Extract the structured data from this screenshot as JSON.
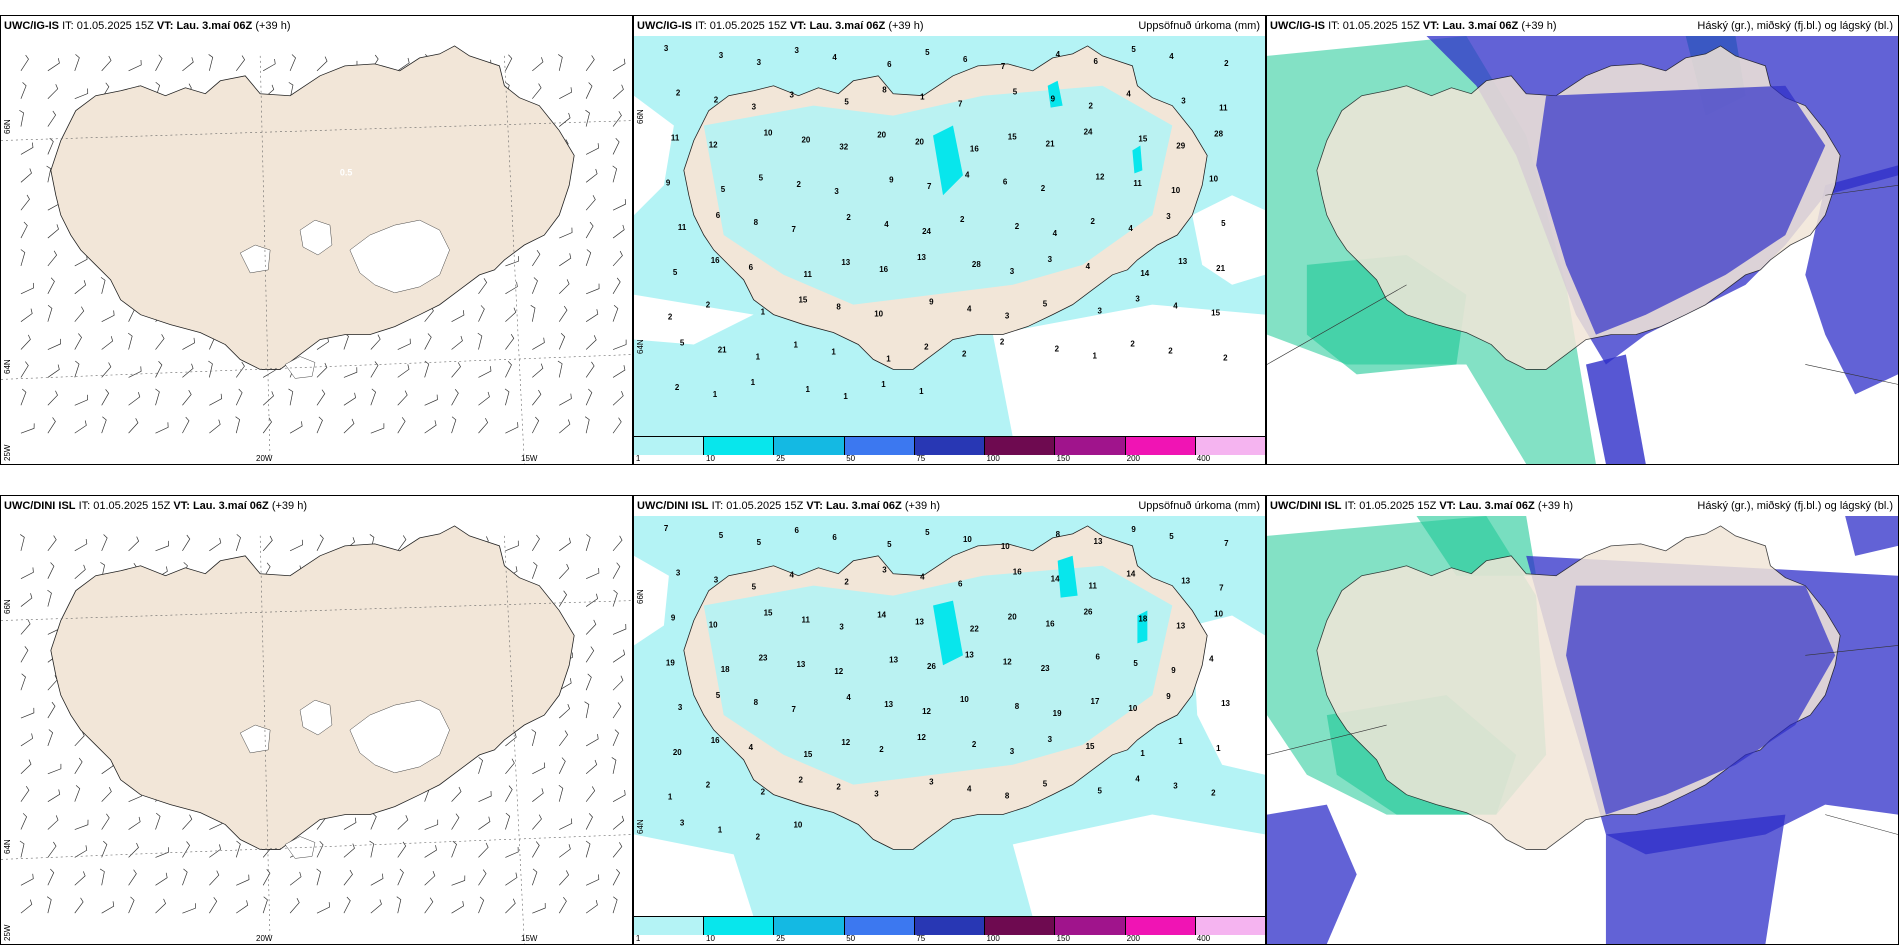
{
  "legend_colors": [
    "#b4f3f5",
    "#08e6ec",
    "#14b9e3",
    "#3c78f0",
    "#2837b4",
    "#6e0a50",
    "#a0148c",
    "#f014b4",
    "#f5b4f0"
  ],
  "legend_ticks": [
    "1",
    "10",
    "25",
    "50",
    "75",
    "100",
    "150",
    "200",
    "400"
  ],
  "colors": {
    "land": "#f2e6d8",
    "sea": "#ffffff",
    "precip_light": "#b4f3f5",
    "precip_mid": "#08e6ec",
    "cloud_high": "#1ec896",
    "cloud_mid": "#2d2dc8",
    "cloud_low": "#ffffff"
  },
  "rows": [
    {
      "model": "UWC/IG-IS",
      "it_label": "IT:",
      "it_value": "01.05.2025 15Z",
      "vt_label": "VT:",
      "vt_value": "Lau. 3.maí 06Z",
      "lead": "(+39 h)",
      "wind": {
        "lat_66": "66N",
        "lat_64": "64N",
        "lon_25": "25W",
        "lon_20": "20W",
        "lon_15": "15W",
        "center_label": "0.5"
      },
      "precip": {
        "title": "Uppsöfnuð úrkoma (mm)",
        "lat_66": "66N",
        "lat_64": "64N",
        "labels": [
          "3",
          "3",
          "3",
          "3",
          "4",
          "6",
          "5",
          "6",
          "7",
          "4",
          "6",
          "5",
          "4",
          "2",
          "2",
          "2",
          "3",
          "3",
          "5",
          "8",
          "1",
          "7",
          "5",
          "9",
          "2",
          "4",
          "3",
          "11",
          "11",
          "12",
          "10",
          "20",
          "32",
          "20",
          "20",
          "16",
          "15",
          "21",
          "24",
          "15",
          "29",
          "28",
          "9",
          "5",
          "5",
          "2",
          "3",
          "9",
          "7",
          "4",
          "6",
          "2",
          "12",
          "11",
          "10",
          "10",
          "11",
          "6",
          "8",
          "7",
          "2",
          "4",
          "24",
          "2",
          "2",
          "4",
          "2",
          "4",
          "3",
          "5",
          "5",
          "16",
          "6",
          "11",
          "13",
          "16",
          "13",
          "28",
          "3",
          "3",
          "4",
          "14",
          "13",
          "21",
          "2",
          "2",
          "1",
          "15",
          "8",
          "10",
          "9",
          "4",
          "3",
          "5",
          "3",
          "3",
          "4",
          "15",
          "5",
          "21",
          "1",
          "1",
          "1",
          "1",
          "2",
          "2",
          "2",
          "2",
          "1",
          "2",
          "2",
          "2",
          "2",
          "1",
          "1",
          "1",
          "1",
          "1",
          "1"
        ]
      },
      "cloud": {
        "title": "Háský (gr.), miðský (fj.bl.) og lágský (bl.)"
      }
    },
    {
      "model": "UWC/DINI ISL",
      "it_label": "IT:",
      "it_value": "01.05.2025 15Z",
      "vt_label": "VT:",
      "vt_value": "Lau. 3.maí 06Z",
      "lead": "(+39 h)",
      "wind": {
        "lat_66": "66N",
        "lat_64": "64N",
        "lon_25": "25W",
        "lon_20": "20W",
        "lon_15": "15W",
        "center_label": ""
      },
      "precip": {
        "title": "Uppsöfnuð úrkoma (mm)",
        "lat_66": "66N",
        "lat_64": "64N",
        "labels": [
          "7",
          "5",
          "5",
          "6",
          "6",
          "5",
          "5",
          "10",
          "10",
          "8",
          "13",
          "9",
          "5",
          "7",
          "3",
          "3",
          "5",
          "4",
          "2",
          "3",
          "4",
          "6",
          "16",
          "14",
          "11",
          "14",
          "13",
          "7",
          "9",
          "10",
          "15",
          "11",
          "3",
          "14",
          "13",
          "22",
          "20",
          "16",
          "26",
          "18",
          "13",
          "10",
          "19",
          "18",
          "23",
          "13",
          "12",
          "13",
          "26",
          "13",
          "12",
          "23",
          "6",
          "5",
          "9",
          "4",
          "3",
          "5",
          "8",
          "7",
          "4",
          "13",
          "12",
          "10",
          "8",
          "19",
          "17",
          "10",
          "9",
          "13",
          "20",
          "16",
          "4",
          "15",
          "12",
          "2",
          "12",
          "2",
          "3",
          "3",
          "15",
          "1",
          "1",
          "1",
          "1",
          "2",
          "2",
          "2",
          "2",
          "3",
          "3",
          "4",
          "8",
          "5",
          "5",
          "4",
          "3",
          "2",
          "3",
          "1",
          "2",
          "10"
        ]
      },
      "cloud": {
        "title": "Háský (gr.), miðský (fj.bl.) og lágský (bl.)"
      }
    }
  ]
}
